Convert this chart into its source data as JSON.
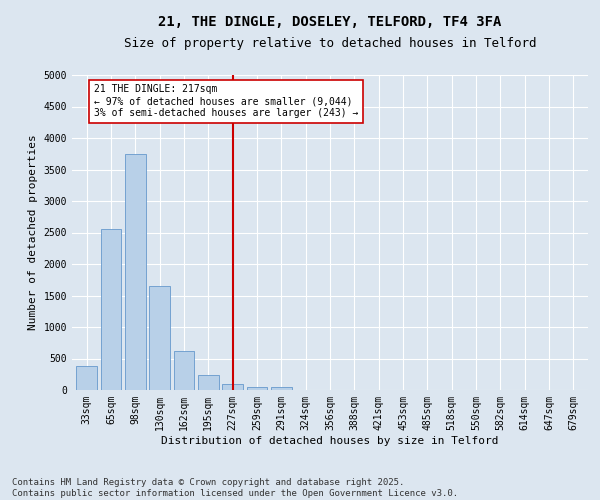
{
  "title1": "21, THE DINGLE, DOSELEY, TELFORD, TF4 3FA",
  "title2": "Size of property relative to detached houses in Telford",
  "xlabel": "Distribution of detached houses by size in Telford",
  "ylabel": "Number of detached properties",
  "categories": [
    "33sqm",
    "65sqm",
    "98sqm",
    "130sqm",
    "162sqm",
    "195sqm",
    "227sqm",
    "259sqm",
    "291sqm",
    "324sqm",
    "356sqm",
    "388sqm",
    "421sqm",
    "453sqm",
    "485sqm",
    "518sqm",
    "550sqm",
    "582sqm",
    "614sqm",
    "647sqm",
    "679sqm"
  ],
  "values": [
    380,
    2550,
    3750,
    1650,
    620,
    240,
    100,
    55,
    40,
    0,
    0,
    0,
    0,
    0,
    0,
    0,
    0,
    0,
    0,
    0,
    0
  ],
  "bar_color": "#b8d0e8",
  "bar_edge_color": "#6699cc",
  "vline_x": 6,
  "vline_color": "#cc0000",
  "annotation_text": "21 THE DINGLE: 217sqm\n← 97% of detached houses are smaller (9,044)\n3% of semi-detached houses are larger (243) →",
  "annotation_box_color": "#ffffff",
  "annotation_box_edge_color": "#cc0000",
  "ylim": [
    0,
    5000
  ],
  "yticks": [
    0,
    500,
    1000,
    1500,
    2000,
    2500,
    3000,
    3500,
    4000,
    4500,
    5000
  ],
  "background_color": "#dce6f0",
  "grid_color": "#ffffff",
  "footer1": "Contains HM Land Registry data © Crown copyright and database right 2025.",
  "footer2": "Contains public sector information licensed under the Open Government Licence v3.0.",
  "title_fontsize": 10,
  "subtitle_fontsize": 9,
  "annotation_fontsize": 7,
  "tick_fontsize": 7,
  "ylabel_fontsize": 8,
  "xlabel_fontsize": 8,
  "footer_fontsize": 6.5
}
